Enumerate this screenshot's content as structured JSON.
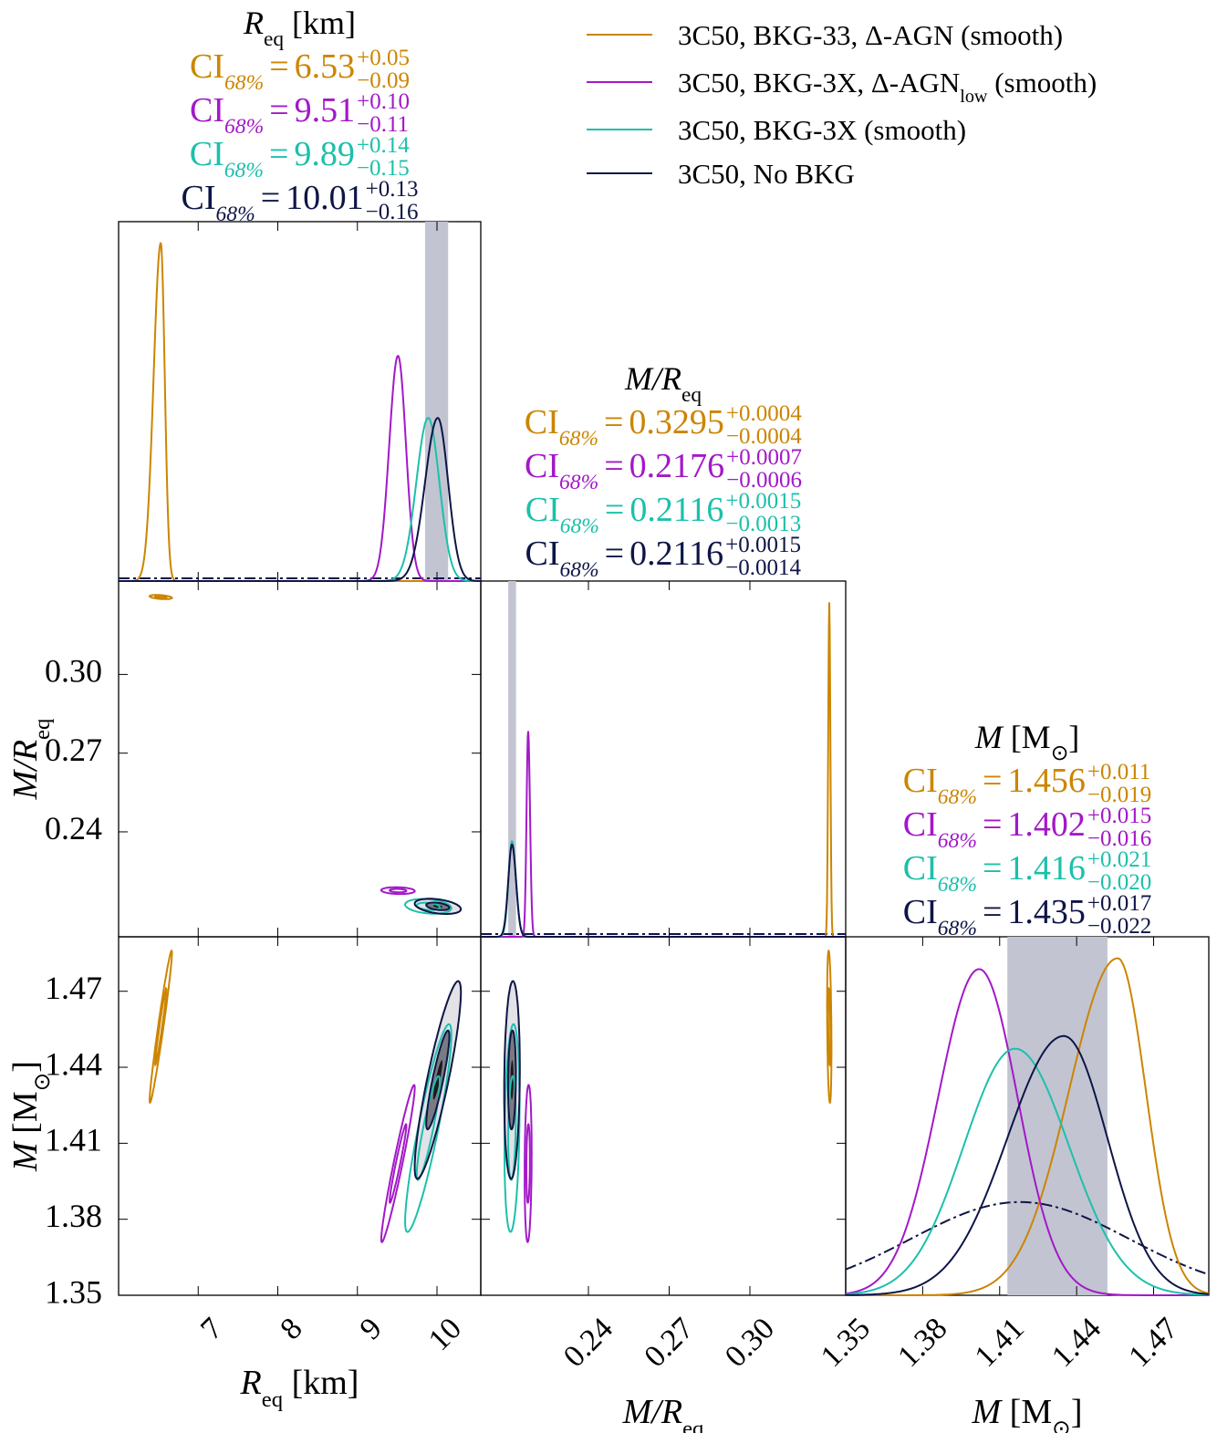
{
  "chart_data": {
    "type": "corner",
    "series": [
      {
        "name": [
          {
            "text": "3C50, BKG-33, Δ-AGN (smooth)"
          }
        ],
        "color": "#cc8500"
      },
      {
        "name": [
          {
            "text": "3C50, BKG-3X, Δ-AGN"
          },
          {
            "text": "low",
            "style": "sub"
          },
          {
            "text": " (smooth)"
          }
        ],
        "color": "#a318c8"
      },
      {
        "name": [
          {
            "text": "3C50, BKG-3X (smooth)"
          }
        ],
        "color": "#1cc0ab"
      },
      {
        "name": [
          {
            "text": "3C50, No BKG"
          }
        ],
        "color": "#0e1546"
      }
    ],
    "ci_label": "CI",
    "ci_sub": "68%",
    "ci_eq": "=",
    "band_series": 3,
    "parameters": [
      {
        "label": [
          {
            "text": "R",
            "style": "italic"
          },
          {
            "text": "eq",
            "style": "sub"
          },
          {
            "text": " [km]"
          }
        ],
        "lim": [
          6.0,
          10.55
        ],
        "ticks": [
          7,
          8,
          9,
          10
        ],
        "ci": [
          {
            "values": [
              6.53,
              0.05,
              -0.09
            ],
            "value_labels": [
              "6.53",
              "+0.05",
              "−0.09"
            ]
          },
          {
            "values": [
              9.51,
              0.1,
              -0.11
            ],
            "value_labels": [
              "9.51",
              "+0.10",
              "−0.11"
            ]
          },
          {
            "values": [
              9.89,
              0.14,
              -0.15
            ],
            "value_labels": [
              "9.89",
              "+0.14",
              "−0.15"
            ]
          },
          {
            "values": [
              10.01,
              0.13,
              -0.16
            ],
            "value_labels": [
              "10.01",
              "+0.13",
              "−0.16"
            ]
          }
        ]
      },
      {
        "label": [
          {
            "text": "M/R",
            "style": "italic"
          },
          {
            "text": "eq",
            "style": "sub"
          }
        ],
        "lim": [
          0.2,
          0.3356
        ],
        "ticks": [
          0.24,
          0.27,
          {
            "value": 0.3,
            "label": "0.30"
          }
        ],
        "ci": [
          {
            "values": [
              0.3295,
              0.0004,
              -0.0004
            ],
            "value_labels": [
              "0.3295",
              "+0.0004",
              "−0.0004"
            ]
          },
          {
            "values": [
              0.2176,
              0.0007,
              -0.0006
            ],
            "value_labels": [
              "0.2176",
              "+0.0007",
              "−0.0006"
            ]
          },
          {
            "values": [
              0.2116,
              0.0015,
              -0.0013
            ],
            "value_labels": [
              "0.2116",
              "+0.0015",
              "−0.0013"
            ]
          },
          {
            "values": [
              0.2116,
              0.0015,
              -0.0014
            ],
            "value_labels": [
              "0.2116",
              "+0.0015",
              "−0.0014"
            ]
          }
        ]
      },
      {
        "label": [
          {
            "text": "M",
            "style": "italic"
          },
          {
            "text": " [M"
          },
          {
            "text": "⊙",
            "style": "sub"
          },
          {
            "text": "]"
          }
        ],
        "lim": [
          1.35,
          1.4915
        ],
        "ticks": [
          1.35,
          1.38,
          1.41,
          1.44,
          1.47
        ],
        "ci": [
          {
            "values": [
              1.456,
              0.011,
              -0.019
            ],
            "value_labels": [
              "1.456",
              "+0.011",
              "−0.019"
            ]
          },
          {
            "values": [
              1.402,
              0.015,
              -0.016
            ],
            "value_labels": [
              "1.402",
              "+0.015",
              "−0.016"
            ]
          },
          {
            "values": [
              1.416,
              0.021,
              -0.02
            ],
            "value_labels": [
              "1.416",
              "+0.021",
              "−0.020"
            ]
          },
          {
            "values": [
              1.435,
              0.017,
              -0.022
            ],
            "value_labels": [
              "1.435",
              "+0.017",
              "−0.022"
            ]
          }
        ]
      }
    ]
  }
}
